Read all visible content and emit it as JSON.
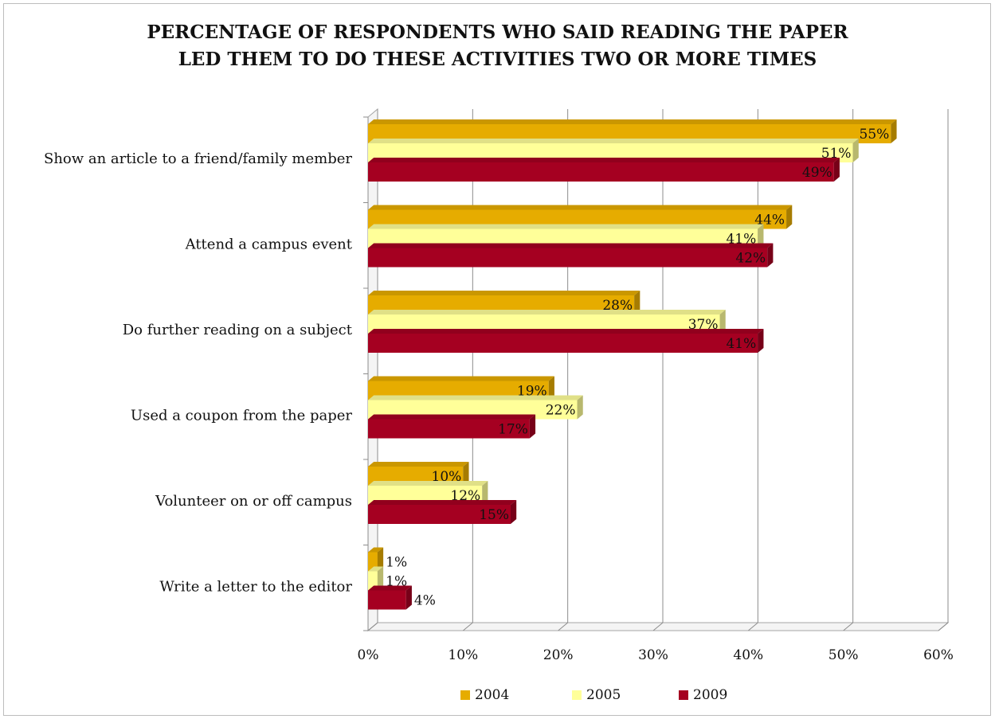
{
  "chart_data": {
    "type": "bar",
    "orientation": "horizontal",
    "title_lines": [
      "PERCENTAGE OF RESPONDENTS WHO SAID READING THE PAPER",
      "LED THEM TO DO THESE ACTIVITIES  TWO OR MORE TIMES"
    ],
    "categories": [
      "Show an article to a friend/family member",
      "Attend a campus event",
      "Do further reading on a subject",
      "Used a coupon from the paper",
      "Volunteer on or off campus",
      "Write a letter to the editor"
    ],
    "series": [
      {
        "name": "2004",
        "values": [
          55,
          44,
          28,
          19,
          10,
          1
        ],
        "labels": [
          "55%",
          "44%",
          "28%",
          "19%",
          "10%",
          "1%"
        ]
      },
      {
        "name": "2005",
        "values": [
          51,
          41,
          37,
          22,
          12,
          1
        ],
        "labels": [
          "51%",
          "41%",
          "37%",
          "22%",
          "12%",
          "1%"
        ]
      },
      {
        "name": "2009",
        "values": [
          49,
          42,
          41,
          17,
          15,
          4
        ],
        "labels": [
          "49%",
          "42%",
          "41%",
          "17%",
          "15%",
          "4%"
        ]
      }
    ],
    "xlim": [
      0,
      60
    ],
    "x_ticks": [
      0,
      10,
      20,
      30,
      40,
      50,
      60
    ],
    "x_tick_labels": [
      "0%",
      "10%",
      "20%",
      "30%",
      "40%",
      "50%",
      "60%"
    ],
    "grid": true,
    "legend_position": "bottom",
    "colors": {
      "2004": "#e6ac00",
      "2005": "#ffff99",
      "2009": "#a50021"
    }
  }
}
